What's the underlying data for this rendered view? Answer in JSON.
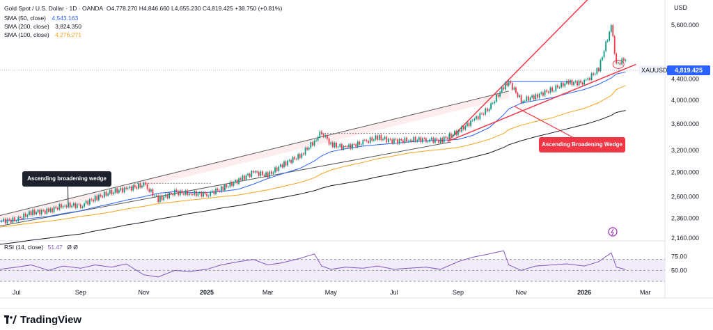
{
  "header": {
    "symbol_line": "Gold Spot / U.S. Dollar · 1D · OANDA",
    "ohlc": "O4,778.270  H4,846.660  L4,655.230  C4,819.425  +38.750 (+0.81%)",
    "sma50_label": "SMA (50, close)",
    "sma50_value": "4,543.163",
    "sma200_label": "SMA (200, close)",
    "sma200_value": "3,824.350",
    "sma100_label": "SMA (100, close)",
    "sma100_value": "4,276.271",
    "rsi_label": "RSI (14, close)",
    "rsi_value": "51.47",
    "rsi_extra": "Ø  Ø"
  },
  "currency": "USD",
  "price_badge": {
    "symbol": "XAUUSD",
    "value": "4,819.425"
  },
  "annotations": {
    "left": "Ascending broadening wedge",
    "right": "Ascending Broadening Wedge"
  },
  "brand": "TradingView",
  "colors": {
    "sma50": "#2962ff",
    "sma200": "#131722",
    "sma100": "#f7a21b",
    "trend_red": "#f23645",
    "rsi": "#7e57c2"
  },
  "chart_data": {
    "type": "line",
    "title": "Gold Spot / U.S. Dollar · 1D · OANDA",
    "x": [
      "2024-06-15",
      "2024-07-01",
      "2024-07-15",
      "2024-08-01",
      "2024-08-15",
      "2024-09-01",
      "2024-09-15",
      "2024-10-01",
      "2024-10-15",
      "2024-11-01",
      "2024-11-15",
      "2024-12-01",
      "2024-12-15",
      "2025-01-01",
      "2025-01-15",
      "2025-02-01",
      "2025-02-15",
      "2025-03-01",
      "2025-03-15",
      "2025-04-01",
      "2025-04-15",
      "2025-04-22",
      "2025-05-01",
      "2025-05-15",
      "2025-06-01",
      "2025-06-15",
      "2025-07-01",
      "2025-07-15",
      "2025-08-01",
      "2025-08-15",
      "2025-09-01",
      "2025-09-15",
      "2025-10-01",
      "2025-10-15",
      "2025-10-20",
      "2025-11-01",
      "2025-11-15",
      "2025-12-01",
      "2025-12-15",
      "2026-01-01",
      "2026-01-15",
      "2026-01-27",
      "2026-02-01",
      "2026-02-10"
    ],
    "series": [
      {
        "name": "XAUUSD",
        "values": [
          2330,
          2345,
          2420,
          2440,
          2500,
          2500,
          2580,
          2660,
          2690,
          2740,
          2570,
          2650,
          2640,
          2630,
          2690,
          2800,
          2900,
          2860,
          3000,
          3120,
          3330,
          3480,
          3280,
          3240,
          3310,
          3390,
          3330,
          3350,
          3360,
          3340,
          3480,
          3650,
          3860,
          4250,
          4350,
          3990,
          4080,
          4200,
          4330,
          4330,
          4600,
          5560,
          4700,
          4819
        ]
      },
      {
        "name": "SMA (50, close)",
        "values": [
          2330,
          2340,
          2360,
          2380,
          2410,
          2440,
          2480,
          2520,
          2560,
          2600,
          2640,
          2660,
          2650,
          2650,
          2660,
          2690,
          2750,
          2820,
          2880,
          2950,
          3050,
          3120,
          3180,
          3220,
          3260,
          3280,
          3300,
          3320,
          3340,
          3345,
          3360,
          3420,
          3540,
          3750,
          3850,
          3950,
          4000,
          4050,
          4120,
          4200,
          4300,
          4420,
          4500,
          4543
        ]
      },
      {
        "name": "SMA (100, close)",
        "values": [
          2270,
          2290,
          2310,
          2330,
          2350,
          2380,
          2400,
          2430,
          2460,
          2490,
          2520,
          2540,
          2560,
          2580,
          2600,
          2620,
          2650,
          2680,
          2720,
          2770,
          2830,
          2880,
          2930,
          2980,
          3030,
          3080,
          3120,
          3160,
          3190,
          3210,
          3240,
          3290,
          3360,
          3450,
          3510,
          3580,
          3640,
          3700,
          3780,
          3860,
          3960,
          4090,
          4200,
          4276
        ]
      },
      {
        "name": "SMA (200, close)",
        "values": [
          2100,
          2120,
          2140,
          2160,
          2180,
          2200,
          2230,
          2260,
          2290,
          2320,
          2350,
          2380,
          2410,
          2440,
          2470,
          2500,
          2530,
          2560,
          2590,
          2630,
          2670,
          2700,
          2730,
          2760,
          2800,
          2840,
          2880,
          2920,
          2960,
          3000,
          3050,
          3100,
          3160,
          3240,
          3280,
          3340,
          3400,
          3460,
          3520,
          3590,
          3660,
          3740,
          3790,
          3824
        ]
      }
    ],
    "rsi": {
      "values": [
        52,
        56,
        60,
        50,
        58,
        54,
        60,
        56,
        62,
        42,
        38,
        50,
        48,
        52,
        60,
        66,
        70,
        60,
        64,
        72,
        80,
        58,
        52,
        56,
        54,
        58,
        52,
        54,
        56,
        52,
        66,
        74,
        80,
        86,
        60,
        50,
        58,
        60,
        62,
        58,
        66,
        82,
        56,
        51.47
      ],
      "levels": [
        70,
        50,
        30
      ]
    },
    "y_ticks": [
      "5,600.000",
      "4,400.000",
      "4,000.000",
      "3,600.000",
      "3,200.000",
      "2,900.000",
      "2,600.000",
      "2,360.000",
      "2,160.000"
    ],
    "rsi_ticks": [
      "75.00",
      "50.00"
    ],
    "x_ticks": [
      "Jul",
      "Sep",
      "Nov",
      "2025",
      "Mar",
      "May",
      "Jul",
      "Sep",
      "Nov",
      "2026",
      "Mar"
    ],
    "log_scale": true,
    "ylim": [
      2160,
      6000
    ],
    "legend": "top-left"
  }
}
